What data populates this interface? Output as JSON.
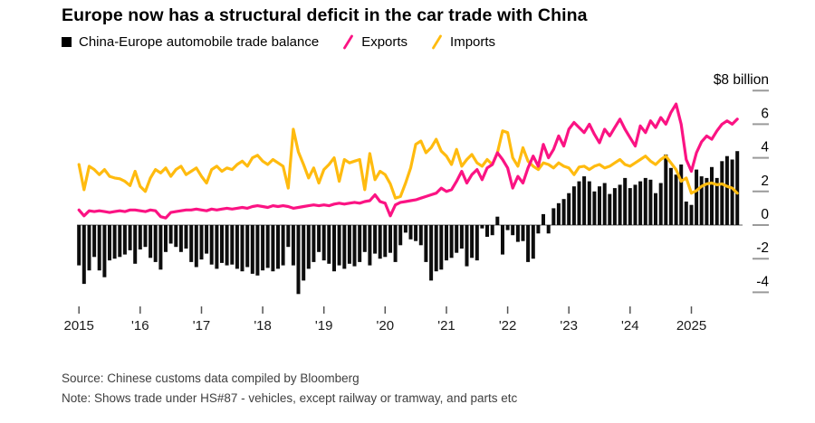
{
  "title": "Europe now has a structural deficit in the car trade with China",
  "legend": [
    {
      "label": "China-Europe automobile trade balance",
      "color": "#000000",
      "marker": "square"
    },
    {
      "label": "Exports",
      "color": "#fb1383",
      "marker": "slash"
    },
    {
      "label": "Imports",
      "color": "#ffbb0f",
      "marker": "slash"
    }
  ],
  "footer": {
    "source": "Source: Chinese customs data compiled by Bloomberg",
    "note": "Note: Shows trade under HS#87 - vehicles, except railway or tramway, and parts etc"
  },
  "chart_data": {
    "type": "bar",
    "title": "China-Europe automobile trade balance with Exports and Imports lines",
    "unit_top_label": "$8 billion",
    "x_start": "2015-01",
    "x_end": "2025-10",
    "x_tick_labels": [
      "2015",
      "'16",
      "'17",
      "'18",
      "'19",
      "'20",
      "'21",
      "'22",
      "'23",
      "'24",
      "2025"
    ],
    "y_ticks": [
      {
        "value": 8,
        "label": "$8 billion"
      },
      {
        "value": 6,
        "label": "6"
      },
      {
        "value": 4,
        "label": "4"
      },
      {
        "value": 2,
        "label": "2"
      },
      {
        "value": 0,
        "label": "0"
      },
      {
        "value": -2,
        "label": "-2"
      },
      {
        "value": -4,
        "label": "-4"
      }
    ],
    "ylim": [
      -5,
      8.5
    ],
    "grid": false,
    "legend_position": "top",
    "colors": {
      "balance": "#0d0d0d",
      "exports": "#fb1383",
      "imports": "#ffbb0f",
      "axis": "#9a9a9a",
      "zero_line": "#b0b0b0",
      "tick_text": "#1a1a1a"
    },
    "series": [
      {
        "name": "China-Europe automobile trade balance",
        "type": "bar",
        "frequency": "monthly",
        "values": [
          -2.4,
          -3.5,
          -2.7,
          -1.9,
          -2.7,
          -3.1,
          -2.1,
          -2.0,
          -1.9,
          -1.75,
          -1.5,
          -2.3,
          -1.45,
          -1.3,
          -1.95,
          -2.2,
          -2.65,
          -1.6,
          -1.1,
          -1.3,
          -1.6,
          -1.4,
          -2.2,
          -2.5,
          -2.05,
          -1.7,
          -2.35,
          -2.6,
          -2.25,
          -2.4,
          -2.35,
          -2.6,
          -2.75,
          -2.5,
          -2.9,
          -3.0,
          -2.7,
          -2.55,
          -2.75,
          -2.6,
          -2.4,
          -1.3,
          -2.4,
          -4.1,
          -3.3,
          -2.6,
          -2.2,
          -1.6,
          -2.1,
          -2.3,
          -2.75,
          -2.4,
          -2.6,
          -2.3,
          -2.45,
          -2.2,
          -1.6,
          -2.4,
          -1.7,
          -2.0,
          -1.9,
          -1.65,
          -2.2,
          -1.2,
          -0.45,
          -0.85,
          -0.95,
          -1.2,
          -2.2,
          -3.3,
          -2.75,
          -2.65,
          -2.1,
          -1.95,
          -1.65,
          -1.4,
          -2.45,
          -1.95,
          -2.1,
          -0.2,
          -0.7,
          -0.6,
          0.5,
          -1.75,
          -0.3,
          -0.6,
          -1.0,
          -0.95,
          -2.2,
          -2.0,
          -0.5,
          0.65,
          -0.5,
          1.0,
          1.3,
          1.55,
          1.9,
          2.3,
          2.6,
          2.9,
          2.6,
          2.0,
          2.3,
          2.5,
          1.85,
          2.2,
          2.4,
          2.8,
          2.2,
          2.4,
          2.6,
          2.8,
          2.7,
          1.9,
          2.5,
          4.2,
          3.4,
          3.0,
          3.6,
          1.4,
          1.2,
          3.3,
          2.9,
          2.8,
          3.45,
          2.8,
          3.8,
          4.1,
          3.9,
          4.4
        ]
      },
      {
        "name": "Exports",
        "type": "line",
        "frequency": "monthly",
        "values": [
          0.9,
          0.55,
          0.85,
          0.8,
          0.85,
          0.8,
          0.75,
          0.8,
          0.85,
          0.8,
          0.9,
          0.9,
          0.85,
          0.8,
          0.9,
          0.85,
          0.5,
          0.42,
          0.75,
          0.8,
          0.85,
          0.9,
          0.9,
          0.95,
          0.9,
          0.85,
          0.95,
          0.9,
          0.95,
          1.0,
          0.95,
          1.0,
          1.05,
          1.0,
          1.1,
          1.15,
          1.1,
          1.05,
          1.15,
          1.1,
          1.15,
          1.1,
          1.0,
          1.05,
          1.1,
          1.15,
          1.2,
          1.15,
          1.2,
          1.15,
          1.25,
          1.3,
          1.25,
          1.3,
          1.35,
          1.3,
          1.4,
          1.45,
          1.8,
          1.4,
          1.3,
          0.55,
          1.2,
          1.35,
          1.4,
          1.45,
          1.5,
          1.6,
          1.7,
          1.8,
          1.9,
          2.2,
          2.0,
          2.1,
          2.6,
          3.2,
          2.5,
          3.0,
          3.3,
          2.7,
          3.4,
          3.6,
          4.3,
          3.9,
          3.4,
          2.2,
          2.9,
          2.5,
          3.4,
          4.1,
          3.5,
          4.8,
          4.0,
          4.5,
          5.3,
          4.7,
          5.7,
          6.1,
          5.8,
          5.5,
          6.0,
          5.4,
          4.9,
          5.7,
          5.3,
          5.8,
          6.3,
          5.7,
          5.2,
          4.7,
          5.9,
          5.5,
          6.2,
          5.8,
          6.4,
          6.0,
          6.7,
          7.2,
          6.0,
          3.9,
          3.2,
          4.3,
          4.95,
          5.3,
          5.1,
          5.6,
          6.0,
          6.2,
          6.0,
          6.3
        ]
      },
      {
        "name": "Imports",
        "type": "line",
        "frequency": "monthly",
        "values": [
          3.6,
          2.1,
          3.5,
          3.3,
          3.0,
          3.3,
          2.9,
          2.8,
          2.75,
          2.6,
          2.35,
          3.2,
          2.3,
          2.0,
          2.8,
          3.3,
          3.1,
          3.4,
          2.9,
          3.3,
          3.5,
          3.0,
          3.2,
          3.4,
          2.9,
          2.5,
          3.3,
          3.5,
          3.2,
          3.4,
          3.3,
          3.6,
          3.8,
          3.5,
          4.0,
          4.15,
          3.8,
          3.6,
          3.9,
          3.7,
          3.5,
          2.2,
          5.7,
          4.35,
          3.6,
          2.8,
          3.4,
          2.5,
          3.3,
          3.6,
          4.0,
          2.6,
          3.9,
          3.7,
          3.8,
          3.9,
          2.1,
          4.25,
          2.7,
          3.2,
          3.0,
          2.45,
          1.6,
          1.7,
          2.5,
          3.4,
          4.8,
          5.0,
          4.3,
          4.6,
          5.1,
          4.4,
          4.1,
          3.6,
          4.5,
          3.5,
          3.9,
          4.2,
          3.7,
          3.5,
          3.9,
          3.6,
          4.3,
          5.6,
          5.5,
          4.0,
          3.5,
          4.6,
          3.8,
          3.5,
          3.3,
          3.7,
          3.6,
          3.4,
          3.7,
          3.5,
          3.4,
          3.0,
          3.45,
          3.5,
          3.3,
          3.5,
          3.6,
          3.4,
          3.5,
          3.7,
          3.9,
          3.6,
          3.5,
          3.7,
          3.9,
          4.1,
          3.8,
          3.6,
          3.9,
          4.1,
          3.7,
          3.3,
          2.6,
          2.8,
          1.9,
          2.05,
          2.3,
          2.45,
          2.5,
          2.4,
          2.45,
          2.3,
          2.2,
          1.9
        ]
      }
    ]
  }
}
